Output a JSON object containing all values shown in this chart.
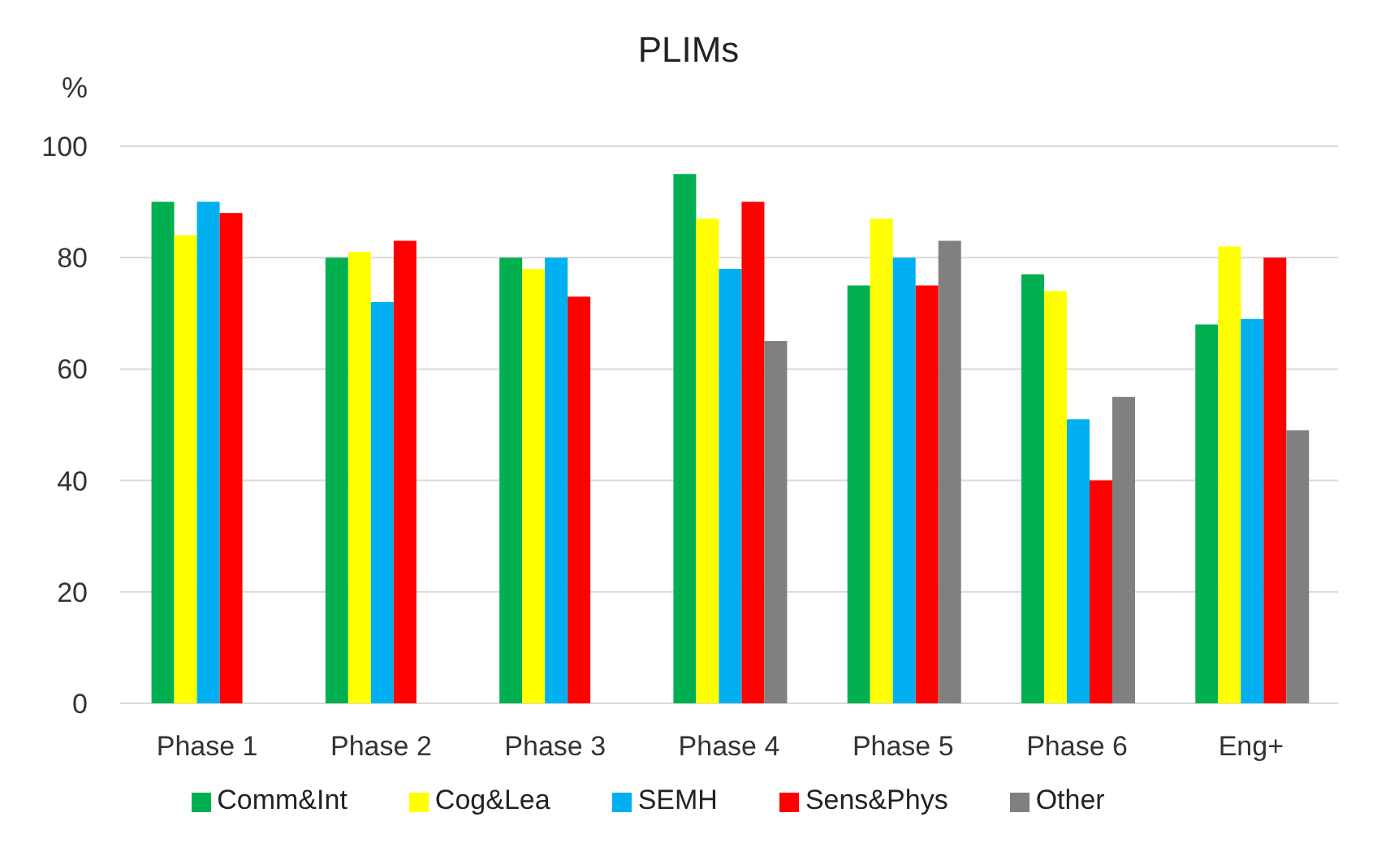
{
  "chart_data": {
    "type": "bar",
    "title": "PLIMs",
    "ylabel": "%",
    "categories": [
      "Phase 1",
      "Phase 2",
      "Phase 3",
      "Phase 4",
      "Phase 5",
      "Phase 6",
      "Eng+"
    ],
    "series": [
      {
        "name": "Comm&Int",
        "color": "#00b050",
        "values": [
          90,
          80,
          80,
          95,
          75,
          77,
          68
        ]
      },
      {
        "name": "Cog&Lea",
        "color": "#ffff00",
        "values": [
          84,
          81,
          78,
          87,
          87,
          74,
          82
        ]
      },
      {
        "name": "SEMH",
        "color": "#00b0f0",
        "values": [
          90,
          72,
          80,
          78,
          80,
          51,
          69
        ]
      },
      {
        "name": "Sens&Phys",
        "color": "#ff0000",
        "values": [
          88,
          83,
          73,
          90,
          75,
          40,
          80
        ]
      },
      {
        "name": "Other",
        "color": "#808080",
        "values": [
          null,
          null,
          null,
          65,
          83,
          55,
          49
        ]
      }
    ],
    "ylim": [
      0,
      100
    ],
    "yticks": [
      0,
      20,
      40,
      60,
      80,
      100
    ],
    "grid": "y",
    "legend": "bottom"
  }
}
